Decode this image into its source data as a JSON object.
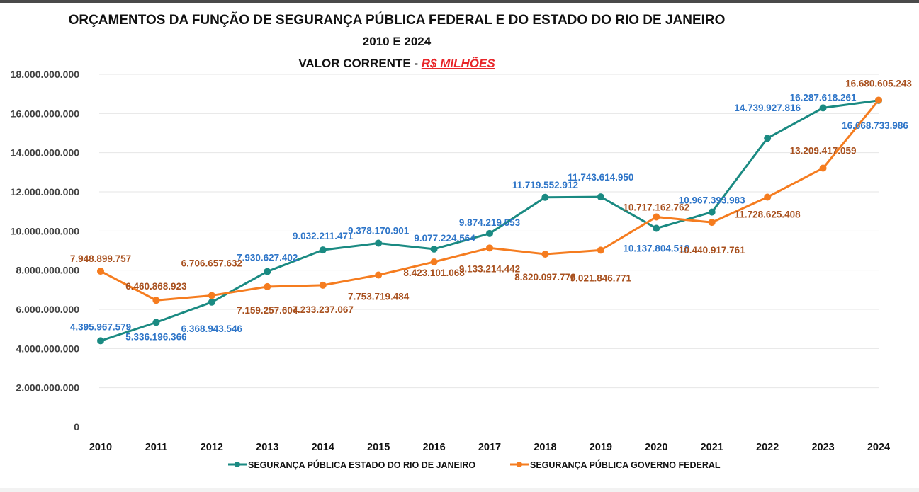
{
  "chart_data": {
    "type": "line",
    "title": "ORÇAMENTOS DA FUNÇÃO DE SEGURANÇA PÚBLICA FEDERAL E DO ESTADO DO RIO DE JANEIRO",
    "subtitle": "2010 E 2024",
    "subtitle2_prefix": "VALOR CORRENTE - ",
    "subtitle2_highlight": "R$ MILHÕES",
    "xlabel": "",
    "ylabel": "",
    "ylim": [
      0,
      18000000000
    ],
    "ytick_step": 2000000000,
    "ytick_labels": [
      "0",
      "2.000.000.000",
      "4.000.000.000",
      "6.000.000.000",
      "8.000.000.000",
      "10.000.000.000",
      "12.000.000.000",
      "14.000.000.000",
      "16.000.000.000",
      "18.000.000.000"
    ],
    "grid": true,
    "legend_position": "bottom",
    "categories": [
      "2010",
      "2011",
      "2012",
      "2013",
      "2014",
      "2015",
      "2016",
      "2017",
      "2018",
      "2019",
      "2020",
      "2021",
      "2022",
      "2023",
      "2024"
    ],
    "series": [
      {
        "name": "SEGURANÇA PÚBLICA ESTADO DO RIO DE JANEIRO",
        "color": "#1a8a82",
        "label_color": "#2e75c8",
        "values": [
          4395967579,
          5336196366,
          6368943546,
          7930627402,
          9032211471,
          9378170901,
          9077224564,
          9874219553,
          11719552912,
          11743614950,
          10137804518,
          10967393983,
          14739927816,
          16287618261,
          16668733986
        ],
        "labels": [
          "4.395.967.579",
          "5.336.196.366",
          "6.368.943.546",
          "7.930.627.402",
          "9.032.211.471",
          "9.378.170.901",
          "9.077.224.564",
          "9.874.219.553",
          "11.719.552.912",
          "11.743.614.950",
          "10.137.804.518",
          "10.967.393.983",
          "14.739.927.816",
          "16.287.618.261",
          "16.668.733.986"
        ]
      },
      {
        "name": "SEGURANÇA PÚBLICA GOVERNO FEDERAL",
        "color": "#f57c1f",
        "label_color": "#a8501e",
        "values": [
          7948899757,
          6460868923,
          6706657632,
          7159257604,
          7233237067,
          7753719484,
          8423101068,
          9133214442,
          8820097778,
          9021846771,
          10717162762,
          10440917761,
          11728625408,
          13209417059,
          16680605243
        ],
        "labels": [
          "7.948.899.757",
          "6.460.868.923",
          "6.706.657.632",
          "7.159.257.604",
          "7.233.237.067",
          "7.753.719.484",
          "8.423.101.068",
          "9.133.214.442",
          "8.820.097.778",
          "9.021.846.771",
          "10.717.162.762",
          "10.440.917.761",
          "11.728.625.408",
          "13.209.417.059",
          "16.680.605.243"
        ]
      }
    ]
  }
}
